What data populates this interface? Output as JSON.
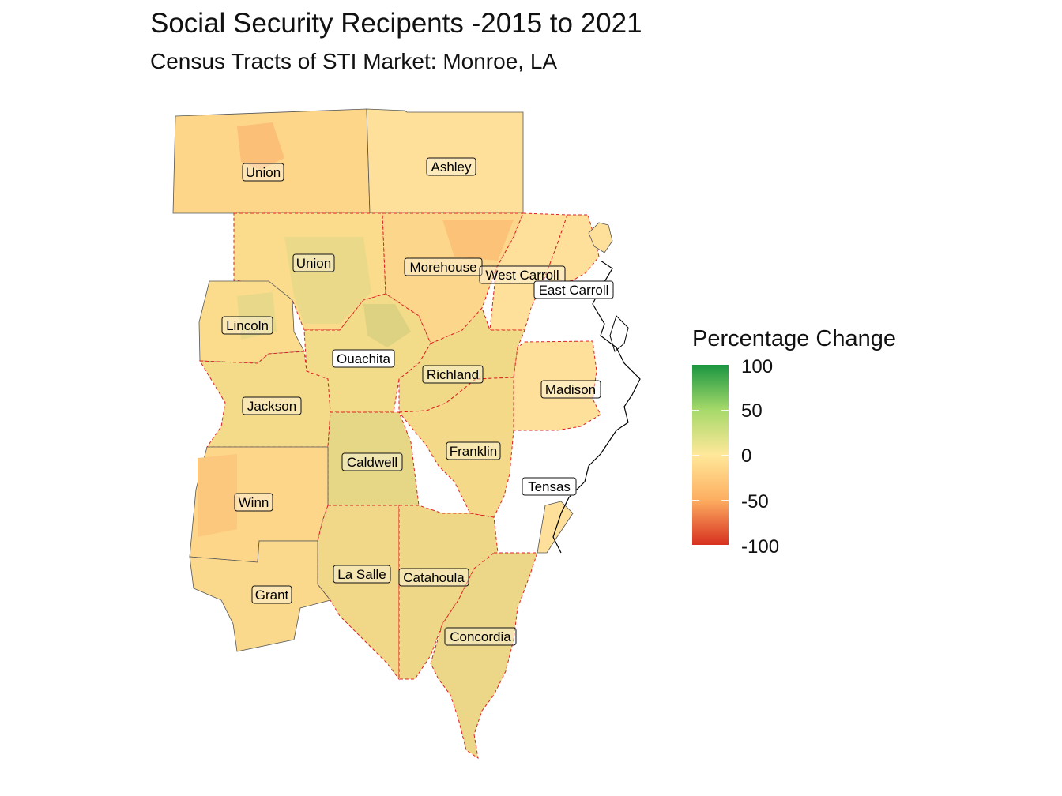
{
  "title": "Social Security Recipents -2015 to 2021",
  "subtitle": "Census Tracts of STI Market: Monroe, LA",
  "legend": {
    "title": "Percentage Change",
    "ticks": [
      "100",
      "50",
      "0",
      "-50",
      "-100"
    ],
    "colors": [
      "#1a9641",
      "#a6d96a",
      "#ffe89a",
      "#fdae61",
      "#d7301f"
    ]
  },
  "map_labels": {
    "union_ar": "Union",
    "ashley": "Ashley",
    "union_la": "Union",
    "morehouse": "Morehouse",
    "west_carroll": "West Carroll",
    "east_carroll": "East Carroll",
    "lincoln": "Lincoln",
    "ouachita": "Ouachita",
    "richland": "Richland",
    "madison": "Madison",
    "jackson": "Jackson",
    "caldwell": "Caldwell",
    "franklin": "Franklin",
    "tensas": "Tensas",
    "winn": "Winn",
    "la_salle": "La Salle",
    "catahoula": "Catahoula",
    "grant": "Grant",
    "concordia": "Concordia"
  }
}
